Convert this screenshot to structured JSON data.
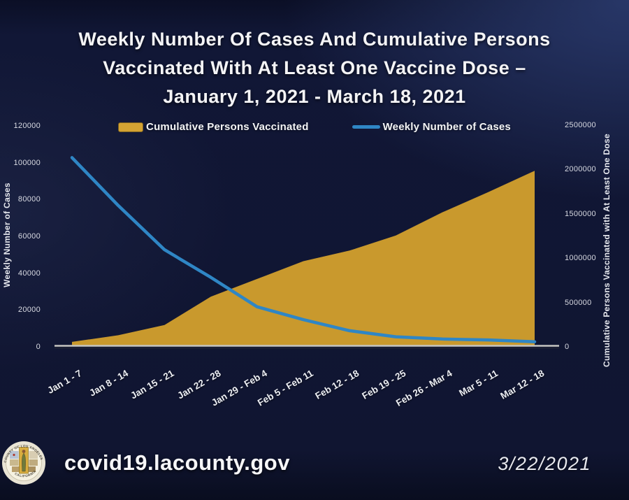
{
  "slide": {
    "title_lines": [
      "Weekly Number Of Cases And Cumulative Persons",
      "Vaccinated With At Least One Vaccine Dose –",
      "January 1, 2021 - March 18, 2021"
    ],
    "footer": {
      "url": "covid19.lacounty.gov",
      "date": "3/22/2021",
      "seal_top_text": "COUNTY OF LOS ANGELES",
      "seal_bottom_text": "CALIFORNIA"
    }
  },
  "chart_data": {
    "type": "area+line combo",
    "title": "Weekly Number Of Cases And Cumulative Persons Vaccinated With At Least One Vaccine Dose – January 1, 2021 - March 18, 2021",
    "categories": [
      "Jan 1 - 7",
      "Jan 8 - 14",
      "Jan 15 - 21",
      "Jan 22 - 28",
      "Jan 29 - Feb 4",
      "Feb 5 - Feb 11",
      "Feb 12 - 18",
      "Feb 19 - 25",
      "Feb 26 - Mar 4",
      "Mar 5 - 11",
      "Mar 12 - 18"
    ],
    "series": [
      {
        "name": "Cumulative Persons Vaccinated",
        "type": "area",
        "axis": "right",
        "color": "#c9992d",
        "values": [
          40000,
          115000,
          230000,
          550000,
          750000,
          950000,
          1070000,
          1240000,
          1500000,
          1730000,
          1970000
        ]
      },
      {
        "name": "Weekly Number of Cases",
        "type": "line",
        "axis": "left",
        "color": "#2f86c5",
        "values": [
          102000,
          76000,
          52000,
          37000,
          21000,
          14000,
          8000,
          4700,
          3500,
          3000,
          2000
        ]
      }
    ],
    "left_axis": {
      "label": "Weekly Number of Cases",
      "range": [
        0,
        120000
      ],
      "ticks": [
        0,
        20000,
        40000,
        60000,
        80000,
        100000,
        120000
      ]
    },
    "right_axis": {
      "label": "Cumulative Persons Vaccinated with At Least One Dose",
      "range": [
        0,
        2500000
      ],
      "ticks": [
        0,
        500000,
        1000000,
        1500000,
        2000000,
        2500000
      ]
    },
    "legend": [
      {
        "label": "Cumulative Persons Vaccinated",
        "swatch": "area",
        "color": "#d4a333"
      },
      {
        "label": "Weekly Number of Cases",
        "swatch": "line",
        "color": "#2f86c5"
      }
    ],
    "grid": false,
    "legend_position": "top"
  }
}
